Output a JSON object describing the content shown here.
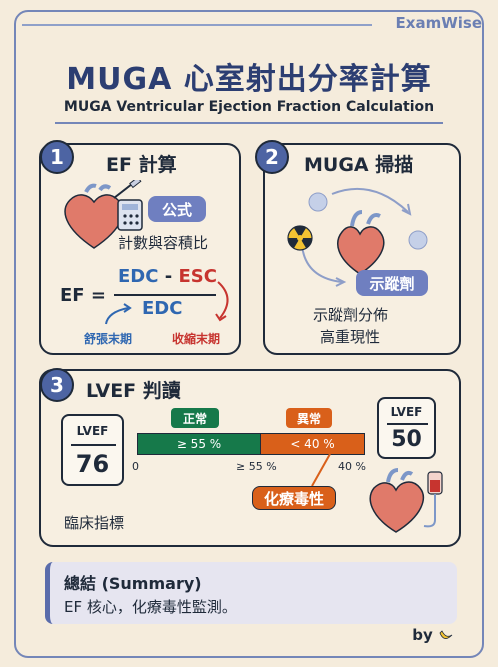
{
  "header": {
    "brand": "ExamWise",
    "title": "MUGA 心室射出分率計算",
    "subtitle": "MUGA Ventricular Ejection Fraction Calculation"
  },
  "sec1": {
    "num": "1",
    "title": "EF 計算",
    "tag": "公式",
    "desc": "計數與容積比",
    "formula_lhs": "EF =",
    "numer_a": "EDC",
    "numer_op": "-",
    "numer_b": "ESC",
    "denom": "EDC",
    "label_left": "舒張末期",
    "label_right": "收縮末期"
  },
  "sec2": {
    "num": "2",
    "title": "MUGA 掃描",
    "tag": "示蹤劑",
    "desc_line1": "示蹤劑分佈",
    "desc_line2": "高重現性"
  },
  "sec3": {
    "num": "3",
    "title": "LVEF 判讀",
    "normal_label": "正常",
    "abnormal_label": "異常",
    "normal_range": "≥ 55 %",
    "abnormal_range": "< 40 %",
    "tick_0": "0",
    "tick_55": "≥ 55 %",
    "tick_40": "40 %",
    "chemo_label": "化療毒性",
    "left_lvef_label": "LVEF",
    "left_lvef_value": "76",
    "right_lvef_label": "LVEF",
    "right_lvef_value": "50",
    "clinical": "臨床指標"
  },
  "summary": {
    "title": "總結 (Summary)",
    "text": "EF 核心，化療毒性監測。"
  },
  "footer": {
    "by": "by"
  },
  "colors": {
    "accent": "#4d64a3",
    "normal": "#16794a",
    "abnormal": "#d9601a",
    "tag": "#6f7fc0"
  }
}
